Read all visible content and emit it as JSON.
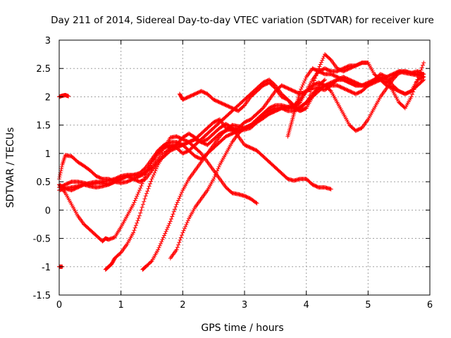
{
  "chart_data": {
    "type": "scatter",
    "title": "Day 211 of 2014, Sidereal Day-to-day VTEC variation (SDTVAR) for receiver kure",
    "xlabel": "GPS time / hours",
    "ylabel": "SDTVAR / TECUs",
    "xlim": [
      0,
      6
    ],
    "ylim": [
      -1.5,
      3
    ],
    "xticks": [
      "0",
      "1",
      "2",
      "3",
      "4",
      "5",
      "6"
    ],
    "yticks": [
      "-1.5",
      "-1",
      "-0.5",
      "0",
      "0.5",
      "1",
      "1.5",
      "2",
      "2.5",
      "3"
    ],
    "grid": true,
    "marker": "plus",
    "color": "#ff0000",
    "series": [
      {
        "x": [
          0.0,
          0.05,
          0.1,
          0.15
        ],
        "y": [
          2.0,
          2.02,
          2.03,
          2.01
        ]
      },
      {
        "x": [
          0.0,
          0.05
        ],
        "y": [
          -1.0,
          -1.0
        ]
      },
      {
        "x": [
          0.0,
          0.05,
          0.1,
          0.2,
          0.3,
          0.4,
          0.5,
          0.6,
          0.7,
          0.8,
          0.9,
          1.0,
          1.1,
          1.2,
          1.3,
          1.4,
          1.5,
          1.6,
          1.7,
          1.8,
          1.9,
          2.0,
          2.1,
          2.2,
          2.3,
          2.4,
          2.5,
          2.6,
          2.7,
          2.8,
          2.9,
          3.0,
          3.1,
          3.2
        ],
        "y": [
          0.55,
          0.8,
          0.97,
          0.95,
          0.85,
          0.78,
          0.7,
          0.6,
          0.55,
          0.55,
          0.5,
          0.48,
          0.5,
          0.55,
          0.6,
          0.68,
          0.75,
          0.9,
          1.1,
          1.28,
          1.3,
          1.25,
          1.2,
          1.1,
          1.0,
          0.85,
          0.7,
          0.55,
          0.4,
          0.3,
          0.28,
          0.25,
          0.2,
          0.12
        ]
      },
      {
        "x": [
          0.0,
          0.1,
          0.2,
          0.3,
          0.4,
          0.5,
          0.6,
          0.7,
          0.75,
          0.8,
          0.9,
          1.0,
          1.1,
          1.2,
          1.3,
          1.4,
          1.5,
          1.6,
          1.7,
          1.8,
          1.9,
          2.0,
          2.1,
          2.2,
          2.3,
          2.4,
          2.5,
          2.6,
          2.7,
          2.8,
          2.9,
          3.0,
          3.1,
          3.2,
          3.3,
          3.4,
          3.5,
          3.6,
          3.7,
          3.8,
          3.9,
          4.0,
          4.1,
          4.2,
          4.3,
          4.4
        ],
        "y": [
          0.45,
          0.3,
          0.1,
          -0.1,
          -0.25,
          -0.35,
          -0.45,
          -0.55,
          -0.5,
          -0.52,
          -0.48,
          -0.3,
          -0.1,
          0.1,
          0.35,
          0.62,
          0.85,
          1.05,
          1.15,
          1.1,
          1.15,
          1.28,
          1.35,
          1.28,
          1.2,
          1.25,
          1.35,
          1.45,
          1.52,
          1.45,
          1.3,
          1.15,
          1.1,
          1.05,
          0.95,
          0.85,
          0.75,
          0.65,
          0.55,
          0.52,
          0.55,
          0.55,
          0.45,
          0.4,
          0.4,
          0.37
        ]
      },
      {
        "x": [
          0.0,
          0.1,
          0.2,
          0.3,
          0.4,
          0.5,
          0.6,
          0.7,
          0.8,
          0.9,
          1.0,
          1.1,
          1.2,
          1.3,
          1.4,
          1.5,
          1.6,
          1.7,
          1.8,
          1.9,
          2.0,
          2.1,
          2.2,
          2.3,
          2.4,
          2.5,
          2.6,
          2.7,
          2.8,
          2.9,
          3.0,
          3.1,
          3.2,
          3.3,
          3.4,
          3.5,
          3.6,
          3.7,
          3.8,
          3.9,
          4.0,
          4.1,
          4.2,
          4.3,
          4.4,
          4.5,
          4.6,
          4.7,
          4.8,
          4.9,
          5.0,
          5.1,
          5.2,
          5.3,
          5.4,
          5.5,
          5.6,
          5.7,
          5.8,
          5.9
        ],
        "y": [
          0.4,
          0.45,
          0.5,
          0.5,
          0.48,
          0.45,
          0.48,
          0.5,
          0.52,
          0.55,
          0.6,
          0.62,
          0.62,
          0.65,
          0.75,
          0.9,
          1.05,
          1.15,
          1.2,
          1.2,
          1.15,
          1.2,
          1.25,
          1.35,
          1.45,
          1.55,
          1.6,
          1.45,
          1.4,
          1.45,
          1.55,
          1.6,
          1.7,
          1.8,
          1.95,
          2.1,
          2.2,
          2.15,
          2.1,
          2.05,
          2.1,
          2.15,
          2.15,
          2.12,
          2.2,
          2.3,
          2.35,
          2.3,
          2.25,
          2.2,
          2.2,
          2.25,
          2.3,
          2.25,
          2.35,
          2.45,
          2.42,
          2.4,
          2.38,
          2.4
        ]
      },
      {
        "x": [
          0.0,
          0.1,
          0.2,
          0.3,
          0.4,
          0.5,
          0.6,
          0.7,
          0.8,
          0.9,
          1.0,
          1.1,
          1.2,
          1.3,
          1.4,
          1.5,
          1.6,
          1.7,
          1.8,
          1.9,
          2.0,
          2.1,
          2.2,
          2.3,
          2.4,
          2.5,
          2.6,
          2.7,
          2.8,
          2.9,
          3.0,
          3.1,
          3.2,
          3.3,
          3.4,
          3.5,
          3.6,
          3.7,
          3.8,
          3.9,
          4.0,
          4.1,
          4.2,
          4.3,
          4.4,
          4.5,
          4.6,
          4.7,
          4.8,
          4.9,
          5.0,
          5.1,
          5.2,
          5.3,
          5.4,
          5.5,
          5.6,
          5.7,
          5.8,
          5.9
        ],
        "y": [
          0.35,
          0.38,
          0.4,
          0.42,
          0.45,
          0.48,
          0.5,
          0.48,
          0.45,
          0.5,
          0.55,
          0.6,
          0.62,
          0.6,
          0.65,
          0.85,
          1.0,
          1.1,
          1.15,
          1.1,
          1.0,
          1.05,
          1.15,
          1.25,
          1.35,
          1.45,
          1.55,
          1.65,
          1.75,
          1.85,
          1.95,
          2.05,
          2.15,
          2.25,
          2.3,
          2.2,
          2.05,
          1.95,
          1.8,
          1.75,
          1.8,
          2.2,
          2.5,
          2.75,
          2.65,
          2.5,
          2.45,
          2.5,
          2.55,
          2.6,
          2.6,
          2.4,
          2.3,
          2.2,
          2.15,
          2.1,
          2.05,
          2.1,
          2.2,
          2.3
        ]
      },
      {
        "x": [
          0.0,
          0.1,
          0.2,
          0.3,
          0.4,
          0.5,
          0.6,
          0.7,
          0.8,
          0.9,
          1.0,
          1.1,
          1.2,
          1.3,
          1.4,
          1.5,
          1.6,
          1.7,
          1.8,
          1.9,
          2.0,
          2.1,
          2.2,
          2.3,
          2.4,
          2.5,
          2.6,
          2.7,
          2.8,
          2.9,
          3.0,
          3.1,
          3.2,
          3.3,
          3.4,
          3.5,
          3.6,
          3.7,
          3.8,
          3.9,
          4.0,
          4.1,
          4.2,
          4.3,
          4.4,
          4.5,
          4.6,
          4.7,
          4.8,
          4.9,
          5.0,
          5.1,
          5.2,
          5.3,
          5.4,
          5.5,
          5.6,
          5.7,
          5.8,
          5.9
        ],
        "y": [
          0.45,
          0.38,
          0.35,
          0.4,
          0.45,
          0.42,
          0.4,
          0.42,
          0.45,
          0.5,
          0.55,
          0.6,
          0.55,
          0.5,
          0.55,
          0.7,
          0.85,
          0.95,
          1.05,
          1.1,
          1.15,
          1.2,
          1.25,
          1.2,
          1.15,
          1.25,
          1.35,
          1.4,
          1.45,
          1.4,
          1.45,
          1.5,
          1.6,
          1.7,
          1.75,
          1.8,
          1.8,
          1.75,
          1.75,
          1.8,
          1.9,
          2.05,
          2.15,
          2.2,
          2.2,
          2.2,
          2.15,
          2.1,
          2.05,
          2.1,
          2.2,
          2.3,
          2.35,
          2.3,
          2.1,
          1.9,
          1.8,
          2.0,
          2.3,
          2.6
        ]
      },
      {
        "x": [
          0.75,
          0.8,
          0.85,
          0.9,
          1.0,
          1.1,
          1.2,
          1.3,
          1.4,
          1.5,
          1.6,
          1.7,
          1.8,
          1.9,
          2.0,
          2.1,
          2.2,
          2.3,
          2.4,
          2.5,
          2.6,
          2.7,
          2.8,
          2.9,
          3.0,
          3.1,
          3.2,
          3.3,
          3.4,
          3.5,
          3.6,
          3.7,
          3.8,
          3.9,
          4.0,
          4.1,
          4.2,
          4.3,
          4.4,
          4.5,
          4.6,
          4.7,
          4.8,
          4.9,
          5.0
        ],
        "y": [
          -1.05,
          -1.0,
          -0.95,
          -0.85,
          -0.75,
          -0.6,
          -0.4,
          -0.1,
          0.25,
          0.55,
          0.8,
          1.0,
          1.1,
          1.15,
          1.15,
          1.05,
          0.95,
          0.9,
          1.0,
          1.1,
          1.2,
          1.3,
          1.35,
          1.4,
          1.42,
          1.45,
          1.55,
          1.65,
          1.7,
          1.75,
          1.8,
          1.8,
          1.82,
          1.9,
          2.1,
          2.3,
          2.45,
          2.5,
          2.45,
          2.45,
          2.5,
          2.55,
          2.55,
          2.6,
          2.6
        ]
      },
      {
        "x": [
          1.35,
          1.4,
          1.5,
          1.6,
          1.7,
          1.8,
          1.9,
          2.0,
          2.1,
          2.2,
          2.3,
          2.4,
          2.5,
          2.6,
          2.7,
          2.8,
          2.9,
          3.0,
          3.1,
          3.2,
          3.3,
          3.4,
          3.5,
          3.6,
          3.7,
          3.8,
          3.9,
          4.0,
          4.1,
          4.2,
          4.3,
          4.4,
          4.5,
          4.6,
          4.7,
          4.8,
          4.9,
          5.0,
          5.1,
          5.2,
          5.3,
          5.4,
          5.5,
          5.6,
          5.7,
          5.8,
          5.9
        ],
        "y": [
          -1.05,
          -1.0,
          -0.9,
          -0.7,
          -0.45,
          -0.2,
          0.1,
          0.35,
          0.55,
          0.7,
          0.85,
          1.0,
          1.15,
          1.3,
          1.42,
          1.5,
          1.48,
          1.45,
          1.5,
          1.55,
          1.62,
          1.7,
          1.75,
          1.8,
          1.82,
          1.85,
          1.95,
          2.1,
          2.2,
          2.25,
          2.2,
          2.1,
          1.9,
          1.7,
          1.5,
          1.4,
          1.45,
          1.6,
          1.8,
          2.0,
          2.15,
          2.3,
          2.42,
          2.45,
          2.42,
          2.45,
          2.4
        ]
      },
      {
        "x": [
          1.8,
          1.9,
          2.0,
          2.1,
          2.2,
          2.3,
          2.4,
          2.5,
          2.6,
          2.7,
          2.8,
          2.9,
          3.0,
          3.1,
          3.2,
          3.3,
          3.4,
          3.5,
          3.6,
          3.7,
          3.8,
          3.9,
          4.0,
          4.1,
          4.2,
          4.3,
          4.4,
          4.5,
          4.6,
          4.7,
          4.8,
          4.9,
          5.0,
          5.1,
          5.2,
          5.3,
          5.4,
          5.5,
          5.6,
          5.7,
          5.8,
          5.9
        ],
        "y": [
          -0.85,
          -0.7,
          -0.4,
          -0.15,
          0.05,
          0.2,
          0.35,
          0.55,
          0.8,
          1.0,
          1.2,
          1.35,
          1.45,
          1.5,
          1.6,
          1.7,
          1.8,
          1.85,
          1.85,
          1.82,
          1.8,
          1.82,
          1.9,
          2.0,
          2.1,
          2.2,
          2.25,
          2.3,
          2.3,
          2.25,
          2.2,
          2.2,
          2.25,
          2.3,
          2.3,
          2.35,
          2.4,
          2.45,
          2.45,
          2.42,
          2.4,
          2.35
        ]
      },
      {
        "x": [
          1.95,
          2.0,
          2.1,
          2.2,
          2.3,
          2.4,
          2.5,
          2.6,
          2.7,
          2.8,
          2.9,
          3.0,
          3.1,
          3.2,
          3.3,
          3.4,
          3.5,
          3.6,
          3.7,
          3.8,
          3.9,
          4.0,
          4.1,
          4.2,
          4.3
        ],
        "y": [
          2.05,
          1.95,
          2.0,
          2.05,
          2.1,
          2.05,
          1.95,
          1.9,
          1.85,
          1.8,
          1.75,
          1.85,
          2.0,
          2.1,
          2.2,
          2.25,
          2.15,
          2.0,
          1.95,
          1.85,
          1.75,
          1.8,
          2.0,
          2.2,
          2.3
        ]
      },
      {
        "x": [
          3.7,
          3.75,
          3.8,
          3.85,
          3.9,
          4.0,
          4.1,
          4.2,
          4.3,
          4.4,
          4.5,
          4.6,
          4.7,
          4.8,
          4.9,
          5.0,
          5.1,
          5.2,
          5.3,
          5.4,
          5.5,
          5.6,
          5.7,
          5.8,
          5.9
        ],
        "y": [
          1.3,
          1.5,
          1.7,
          1.9,
          2.1,
          2.35,
          2.5,
          2.45,
          2.4,
          2.4,
          2.35,
          2.3,
          2.25,
          2.2,
          2.2,
          2.2,
          2.3,
          2.4,
          2.35,
          2.2,
          2.1,
          2.05,
          2.1,
          2.3,
          2.35
        ]
      }
    ]
  }
}
